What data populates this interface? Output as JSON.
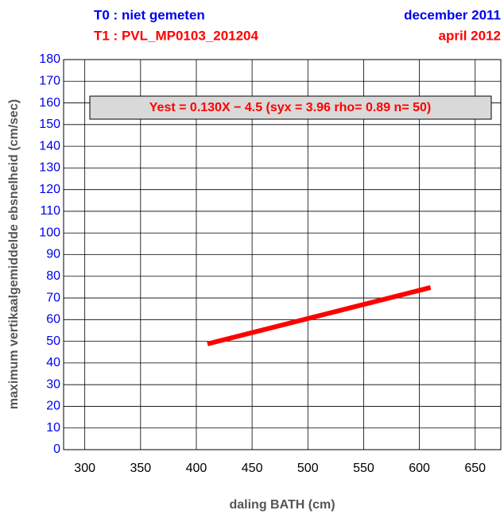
{
  "chart_data": {
    "type": "line",
    "titles": [
      {
        "text": "T0 : niet gemeten",
        "color": "#0000ee",
        "align": "left"
      },
      {
        "text": "december 2011",
        "color": "#0000ee",
        "align": "right"
      },
      {
        "text": "T1 : PVL_MP0103_201204",
        "color": "#ff0000",
        "align": "left"
      },
      {
        "text": "april 2012",
        "color": "#ff0000",
        "align": "right"
      }
    ],
    "annotation": "Yest = 0.130X − 4.5 (syx = 3.96 rho= 0.89 n= 50)",
    "annotation_color": "#ff0000",
    "x_label": "daling BATH (cm)",
    "y_label": "maximum vertikaalgemiddelde ebsnelheid (cm/sec)",
    "x": [
      410,
      610
    ],
    "series": [
      {
        "color": "#ff0000",
        "values": [
          48.8,
          74.8
        ]
      }
    ],
    "xlim": [
      281,
      673
    ],
    "ylim": [
      0,
      180
    ],
    "xticks": [
      300,
      350,
      400,
      450,
      500,
      550,
      600,
      650
    ],
    "yticks": [
      0,
      10,
      20,
      30,
      40,
      50,
      60,
      70,
      80,
      90,
      100,
      110,
      120,
      130,
      140,
      150,
      160,
      170,
      180
    ],
    "ytick_color": "#0000ee",
    "grid": true
  }
}
